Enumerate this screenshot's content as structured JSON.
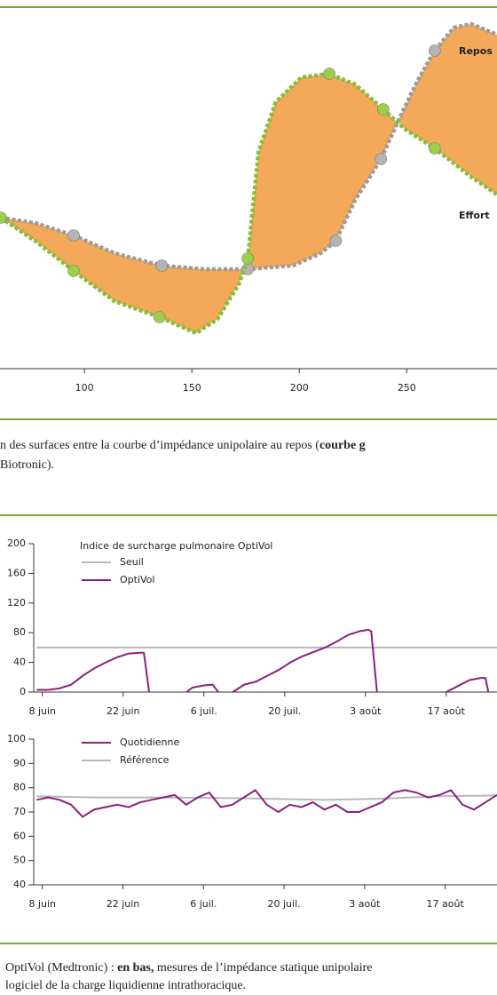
{
  "chart_data": [
    {
      "type": "area",
      "xlim": [
        60.7,
        292
      ],
      "ylim": [
        0,
        100
      ],
      "xticks": [
        100,
        150,
        200,
        250
      ],
      "fill": "#f4a95a",
      "series": [
        {
          "name": "Repos",
          "color": "#9c9c9c",
          "marker_color": "#b4b4b4",
          "x": [
            61,
            77,
            95,
            114,
            136,
            156,
            176,
            197,
            210,
            217,
            226,
            238,
            247,
            255,
            263,
            272,
            280,
            292
          ],
          "values": [
            42.5,
            41,
            37.5,
            32.5,
            29,
            28,
            28,
            29,
            32.5,
            36,
            47.5,
            59,
            71,
            81,
            89.5,
            96,
            97,
            94
          ],
          "markers": [
            2,
            4,
            6,
            9,
            11,
            14
          ]
        },
        {
          "name": "Effort",
          "color": "#86bd3a",
          "marker_color": "#9ccf4a",
          "x": [
            61,
            77,
            95,
            114,
            135,
            152,
            162,
            172,
            176,
            181,
            189,
            201,
            214,
            226,
            239,
            249,
            263,
            280,
            292
          ],
          "values": [
            42.5,
            36,
            27.5,
            19,
            14.5,
            10,
            14,
            24,
            31,
            61,
            75,
            82,
            83,
            80,
            73,
            67.5,
            62,
            54,
            49
          ],
          "markers": [
            0,
            2,
            4,
            8,
            12,
            14,
            16
          ]
        }
      ]
    },
    {
      "type": "line",
      "legend_title": "Indice de surcharge pulmonaire OptiVol",
      "xlim": [
        -1.5,
        78.8
      ],
      "ylim": [
        0,
        200
      ],
      "xticks": [
        {
          "value": 0,
          "label": "8 juin"
        },
        {
          "value": 14,
          "label": "22 juin"
        },
        {
          "value": 28,
          "label": "6 juil."
        },
        {
          "value": 42,
          "label": "20 juil."
        },
        {
          "value": 56,
          "label": "3 août"
        },
        {
          "value": 70,
          "label": "17 août"
        }
      ],
      "yticks": [
        0,
        40,
        80,
        120,
        160,
        200
      ],
      "series": [
        {
          "name": "Seuil",
          "color": "#b8b8b8",
          "x": [
            -1,
            78.8
          ],
          "values": [
            60,
            60
          ]
        },
        {
          "name": "OptiVol",
          "color": "#8b1f7e",
          "x": [
            -1,
            1,
            3,
            5,
            7,
            9,
            11,
            13,
            15,
            17,
            17.6,
            18.5,
            null,
            25,
            26,
            28,
            29.5,
            30.5,
            null,
            33,
            35,
            37,
            39,
            41,
            43,
            45,
            47,
            49,
            51,
            53,
            55,
            56.5,
            57,
            58,
            null,
            70,
            72,
            74,
            76,
            76.8,
            77.3
          ],
          "values": [
            3,
            3,
            5,
            10,
            22,
            32,
            40,
            47,
            52,
            53,
            53,
            0,
            null,
            0,
            6,
            9,
            10,
            0,
            null,
            0,
            10,
            14,
            22,
            30,
            40,
            48,
            54,
            60,
            68,
            77,
            82,
            84,
            82,
            0,
            null,
            0,
            8,
            16,
            19,
            19,
            0
          ]
        }
      ]
    },
    {
      "type": "line",
      "xlim": [
        -1.5,
        79
      ],
      "ylim": [
        40,
        100
      ],
      "xticks": [
        {
          "value": 0,
          "label": "8 juin"
        },
        {
          "value": 14,
          "label": "22 juin"
        },
        {
          "value": 28,
          "label": "6 juil."
        },
        {
          "value": 42,
          "label": "20 juil."
        },
        {
          "value": 56,
          "label": "3 août"
        },
        {
          "value": 70,
          "label": "17 août"
        }
      ],
      "yticks": [
        40,
        50,
        60,
        70,
        80,
        90,
        100
      ],
      "series": [
        {
          "name": "Quotidienne",
          "color": "#8b1f7e",
          "x": [
            -1,
            1,
            3,
            5,
            7,
            9,
            11,
            13,
            15,
            17,
            19,
            21,
            23,
            25,
            27,
            29,
            31,
            33,
            35,
            37,
            39,
            41,
            43,
            45,
            47,
            49,
            51,
            53,
            55,
            57,
            59,
            61,
            63,
            65,
            67,
            69,
            71,
            73,
            75,
            77,
            79
          ],
          "values": [
            75,
            76,
            75,
            73,
            68,
            71,
            72,
            73,
            72,
            74,
            75,
            76,
            77,
            73,
            76,
            78,
            72,
            73,
            76,
            79,
            73,
            70,
            73,
            72,
            74,
            71,
            73,
            70,
            70,
            72,
            74,
            78,
            79,
            78,
            76,
            77,
            79,
            73,
            71,
            74,
            77
          ]
        },
        {
          "name": "Référence",
          "color": "#b8b8b8",
          "x": [
            -1,
            9,
            19,
            29,
            39,
            49,
            59,
            69,
            79
          ],
          "values": [
            76.5,
            76,
            76,
            75.8,
            75.5,
            75,
            75.5,
            76.5,
            76.8
          ]
        }
      ]
    }
  ],
  "captions": [
    [
      [
        "n des surfaces entre la courbe d’impédance unipolaire au repos (",
        "courbe g"
      ],
      [
        "Biotronic)."
      ]
    ],
    [
      [
        "OptiVol (Medtronic) : ",
        "en bas,",
        " mesures de l’impédance statique unipolaire"
      ],
      [
        "logiciel de la charge liquidienne intrathoracique."
      ]
    ]
  ]
}
